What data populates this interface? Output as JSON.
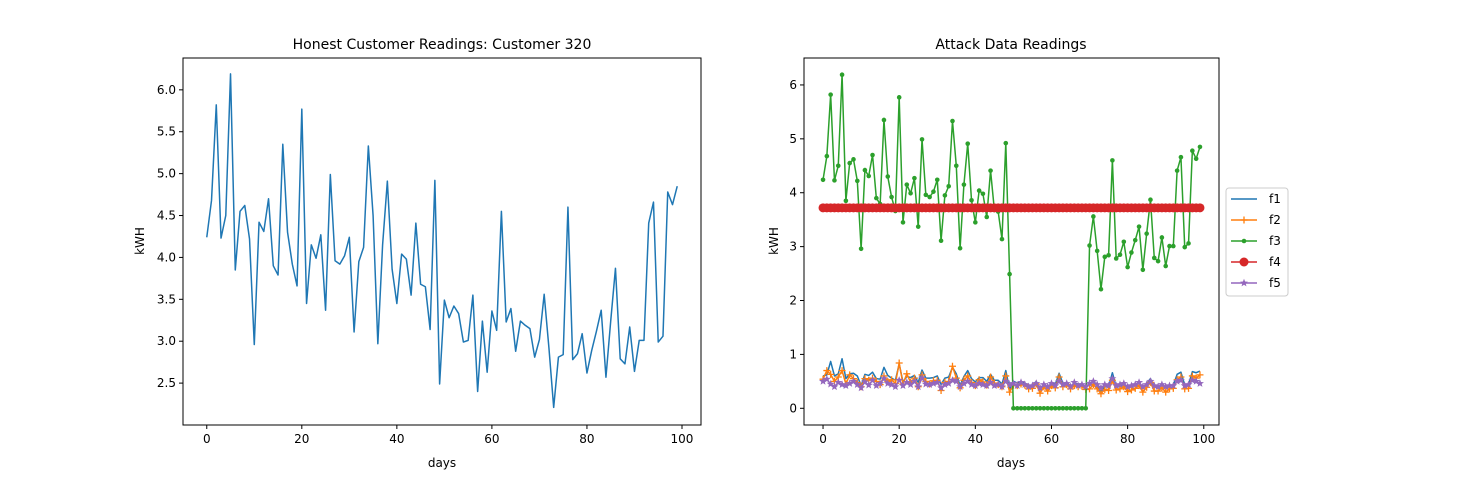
{
  "chart_data": [
    {
      "type": "line",
      "title": "Honest Customer Readings: Customer 320",
      "xlabel": "days",
      "ylabel": "kWH",
      "xlim": [
        -5,
        104
      ],
      "ylim": [
        2.0,
        6.38
      ],
      "xticks": [
        0,
        20,
        40,
        60,
        80,
        100
      ],
      "yticks": [
        2.5,
        3.0,
        3.5,
        4.0,
        4.5,
        5.0,
        5.5,
        6.0
      ],
      "ytick_labels": [
        "2.5",
        "3.0",
        "3.5",
        "4.0",
        "4.5",
        "5.0",
        "5.5",
        "6.0"
      ],
      "grid": false,
      "series": [
        {
          "color": "#1f77b4",
          "marker": "none",
          "x": [
            0,
            1,
            2,
            3,
            4,
            5,
            6,
            7,
            8,
            9,
            10,
            11,
            12,
            13,
            14,
            15,
            16,
            17,
            18,
            19,
            20,
            21,
            22,
            23,
            24,
            25,
            26,
            27,
            28,
            29,
            30,
            31,
            32,
            33,
            34,
            35,
            36,
            37,
            38,
            39,
            40,
            41,
            42,
            43,
            44,
            45,
            46,
            47,
            48,
            49,
            50,
            51,
            52,
            53,
            54,
            55,
            56,
            57,
            58,
            59,
            60,
            61,
            62,
            63,
            64,
            65,
            66,
            67,
            68,
            69,
            70,
            71,
            72,
            73,
            74,
            75,
            76,
            77,
            78,
            79,
            80,
            81,
            82,
            83,
            84,
            85,
            86,
            87,
            88,
            89,
            90,
            91,
            92,
            93,
            94,
            95,
            96,
            97,
            98,
            99
          ],
          "values": [
            4.24,
            4.68,
            5.82,
            4.23,
            4.5,
            6.19,
            3.85,
            4.55,
            4.62,
            4.22,
            2.96,
            4.42,
            4.31,
            4.7,
            3.9,
            3.79,
            5.35,
            4.3,
            3.92,
            3.66,
            5.77,
            3.45,
            4.15,
            3.99,
            4.27,
            3.37,
            4.99,
            3.96,
            3.92,
            4.02,
            4.24,
            3.11,
            3.95,
            4.12,
            5.33,
            4.5,
            2.97,
            4.15,
            4.91,
            3.86,
            3.45,
            4.04,
            3.98,
            3.55,
            4.41,
            3.68,
            3.65,
            3.14,
            4.92,
            2.49,
            3.49,
            3.28,
            3.42,
            3.33,
            2.99,
            3.01,
            3.55,
            2.4,
            3.24,
            2.63,
            3.36,
            3.13,
            4.55,
            3.23,
            3.39,
            2.88,
            3.24,
            3.19,
            3.15,
            2.81,
            3.02,
            3.56,
            2.92,
            2.21,
            2.81,
            2.84,
            4.6,
            2.78,
            2.85,
            3.09,
            2.62,
            2.89,
            3.12,
            3.37,
            2.57,
            3.24,
            3.87,
            2.79,
            2.73,
            3.17,
            2.64,
            3.01,
            3.01,
            4.41,
            4.66,
            2.99,
            3.06,
            4.78,
            4.63,
            4.85
          ]
        }
      ]
    },
    {
      "type": "line",
      "title": "Attack Data Readings",
      "xlabel": "days",
      "ylabel": "kWH",
      "xlim": [
        -5,
        104
      ],
      "ylim": [
        -0.31,
        6.5
      ],
      "xticks": [
        0,
        20,
        40,
        60,
        80,
        100
      ],
      "yticks": [
        0,
        1,
        2,
        3,
        4,
        5,
        6
      ],
      "ytick_labels": [
        "0",
        "1",
        "2",
        "3",
        "4",
        "5",
        "6"
      ],
      "grid": false,
      "legend_position": "outside-right",
      "series": [
        {
          "name": "f1",
          "color": "#1f77b4",
          "marker": "none",
          "values": [
            0.6,
            0.62,
            0.87,
            0.6,
            0.64,
            0.92,
            0.55,
            0.64,
            0.65,
            0.6,
            0.42,
            0.63,
            0.61,
            0.67,
            0.55,
            0.54,
            0.76,
            0.61,
            0.56,
            0.52,
            0.82,
            0.49,
            0.59,
            0.57,
            0.61,
            0.48,
            0.71,
            0.56,
            0.56,
            0.57,
            0.6,
            0.44,
            0.56,
            0.58,
            0.76,
            0.64,
            0.42,
            0.59,
            0.7,
            0.55,
            0.49,
            0.57,
            0.57,
            0.5,
            0.63,
            0.52,
            0.52,
            0.45,
            0.7,
            0.35,
            0.5,
            0.47,
            0.49,
            0.47,
            0.42,
            0.43,
            0.5,
            0.34,
            0.46,
            0.37,
            0.48,
            0.44,
            0.65,
            0.46,
            0.48,
            0.41,
            0.46,
            0.45,
            0.45,
            0.4,
            0.43,
            0.51,
            0.41,
            0.31,
            0.4,
            0.4,
            0.66,
            0.4,
            0.4,
            0.44,
            0.37,
            0.41,
            0.44,
            0.48,
            0.37,
            0.46,
            0.55,
            0.4,
            0.39,
            0.45,
            0.38,
            0.43,
            0.43,
            0.63,
            0.67,
            0.43,
            0.44,
            0.68,
            0.66,
            0.69
          ]
        },
        {
          "name": "f2",
          "color": "#ff7f0e",
          "marker": "plus",
          "values": [
            0.54,
            0.7,
            0.63,
            0.5,
            0.58,
            0.7,
            0.45,
            0.62,
            0.55,
            0.48,
            0.4,
            0.55,
            0.52,
            0.56,
            0.5,
            0.44,
            0.6,
            0.5,
            0.53,
            0.46,
            0.84,
            0.45,
            0.64,
            0.48,
            0.56,
            0.4,
            0.62,
            0.5,
            0.45,
            0.51,
            0.52,
            0.33,
            0.48,
            0.5,
            0.78,
            0.56,
            0.38,
            0.52,
            0.6,
            0.48,
            0.42,
            0.53,
            0.49,
            0.43,
            0.58,
            0.47,
            0.44,
            0.4,
            0.6,
            0.3,
            0.43,
            0.42,
            0.45,
            0.43,
            0.36,
            0.37,
            0.45,
            0.28,
            0.4,
            0.32,
            0.42,
            0.38,
            0.58,
            0.4,
            0.44,
            0.36,
            0.42,
            0.4,
            0.41,
            0.35,
            0.36,
            0.44,
            0.36,
            0.27,
            0.35,
            0.33,
            0.52,
            0.34,
            0.36,
            0.4,
            0.31,
            0.34,
            0.37,
            0.42,
            0.3,
            0.39,
            0.48,
            0.32,
            0.32,
            0.38,
            0.3,
            0.36,
            0.37,
            0.53,
            0.58,
            0.36,
            0.37,
            0.6,
            0.56,
            0.62
          ]
        },
        {
          "name": "f3",
          "color": "#2ca02c",
          "marker": "dot",
          "values": [
            4.24,
            4.68,
            5.82,
            4.23,
            4.5,
            6.19,
            3.85,
            4.55,
            4.62,
            4.22,
            2.96,
            4.42,
            4.31,
            4.7,
            3.9,
            3.79,
            5.35,
            4.3,
            3.92,
            3.66,
            5.77,
            3.45,
            4.15,
            3.99,
            4.27,
            3.37,
            4.99,
            3.96,
            3.92,
            4.02,
            4.24,
            3.11,
            3.95,
            4.12,
            5.33,
            4.5,
            2.97,
            4.15,
            4.91,
            3.86,
            3.45,
            4.04,
            3.98,
            3.55,
            4.41,
            3.68,
            3.65,
            3.14,
            4.92,
            2.49,
            0,
            0,
            0,
            0,
            0,
            0,
            0,
            0,
            0,
            0,
            0,
            0,
            0,
            0,
            0,
            0,
            0,
            0,
            0,
            0,
            3.02,
            3.56,
            2.92,
            2.21,
            2.81,
            2.84,
            4.6,
            2.78,
            2.85,
            3.09,
            2.62,
            2.89,
            3.12,
            3.37,
            2.57,
            3.24,
            3.87,
            2.79,
            2.73,
            3.17,
            2.64,
            3.01,
            3.01,
            4.41,
            4.66,
            2.99,
            3.06,
            4.78,
            4.63,
            4.85
          ]
        },
        {
          "name": "f4",
          "color": "#d62728",
          "marker": "circle",
          "values": [
            3.72,
            3.72,
            3.72,
            3.72,
            3.72,
            3.72,
            3.72,
            3.72,
            3.72,
            3.72,
            3.72,
            3.72,
            3.72,
            3.72,
            3.72,
            3.72,
            3.72,
            3.72,
            3.72,
            3.72,
            3.72,
            3.72,
            3.72,
            3.72,
            3.72,
            3.72,
            3.72,
            3.72,
            3.72,
            3.72,
            3.72,
            3.72,
            3.72,
            3.72,
            3.72,
            3.72,
            3.72,
            3.72,
            3.72,
            3.72,
            3.72,
            3.72,
            3.72,
            3.72,
            3.72,
            3.72,
            3.72,
            3.72,
            3.72,
            3.72,
            3.72,
            3.72,
            3.72,
            3.72,
            3.72,
            3.72,
            3.72,
            3.72,
            3.72,
            3.72,
            3.72,
            3.72,
            3.72,
            3.72,
            3.72,
            3.72,
            3.72,
            3.72,
            3.72,
            3.72,
            3.72,
            3.72,
            3.72,
            3.72,
            3.72,
            3.72,
            3.72,
            3.72,
            3.72,
            3.72,
            3.72,
            3.72,
            3.72,
            3.72,
            3.72,
            3.72,
            3.72,
            3.72,
            3.72,
            3.72,
            3.72,
            3.72,
            3.72,
            3.72,
            3.72,
            3.72,
            3.72,
            3.72,
            3.72,
            3.72
          ]
        },
        {
          "name": "f5",
          "color": "#9467bd",
          "marker": "star",
          "values": [
            0.5,
            0.54,
            0.45,
            0.4,
            0.48,
            0.44,
            0.42,
            0.46,
            0.5,
            0.44,
            0.38,
            0.49,
            0.43,
            0.52,
            0.42,
            0.46,
            0.55,
            0.46,
            0.44,
            0.4,
            0.52,
            0.42,
            0.48,
            0.44,
            0.5,
            0.4,
            0.56,
            0.45,
            0.44,
            0.46,
            0.48,
            0.38,
            0.44,
            0.46,
            0.52,
            0.5,
            0.4,
            0.46,
            0.5,
            0.44,
            0.42,
            0.46,
            0.44,
            0.42,
            0.48,
            0.42,
            0.44,
            0.4,
            0.5,
            0.44,
            0.46,
            0.42,
            0.48,
            0.44,
            0.4,
            0.42,
            0.46,
            0.38,
            0.44,
            0.4,
            0.46,
            0.42,
            0.5,
            0.44,
            0.46,
            0.4,
            0.48,
            0.42,
            0.44,
            0.4,
            0.46,
            0.5,
            0.44,
            0.38,
            0.44,
            0.42,
            0.55,
            0.42,
            0.44,
            0.46,
            0.4,
            0.42,
            0.44,
            0.48,
            0.4,
            0.44,
            0.5,
            0.42,
            0.4,
            0.44,
            0.4,
            0.42,
            0.42,
            0.5,
            0.52,
            0.42,
            0.44,
            0.52,
            0.5,
            0.46
          ]
        }
      ]
    }
  ]
}
